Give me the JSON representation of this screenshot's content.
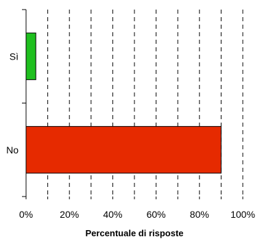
{
  "chart_data": {
    "type": "bar",
    "orientation": "horizontal",
    "categories": [
      "Sì",
      "No"
    ],
    "values": [
      4.5,
      90
    ],
    "colors": [
      "#1fbf1f",
      "#e62a00"
    ],
    "xlabel": "Percentuale di risposte",
    "ylabel": "",
    "xlim": [
      0,
      100
    ],
    "x_ticks": [
      0,
      20,
      40,
      60,
      80,
      100
    ],
    "x_tick_labels": [
      "0%",
      "20%",
      "40%",
      "60%",
      "80%",
      "100%"
    ],
    "grid": "vertical dashed every 10%",
    "legend": "none"
  }
}
